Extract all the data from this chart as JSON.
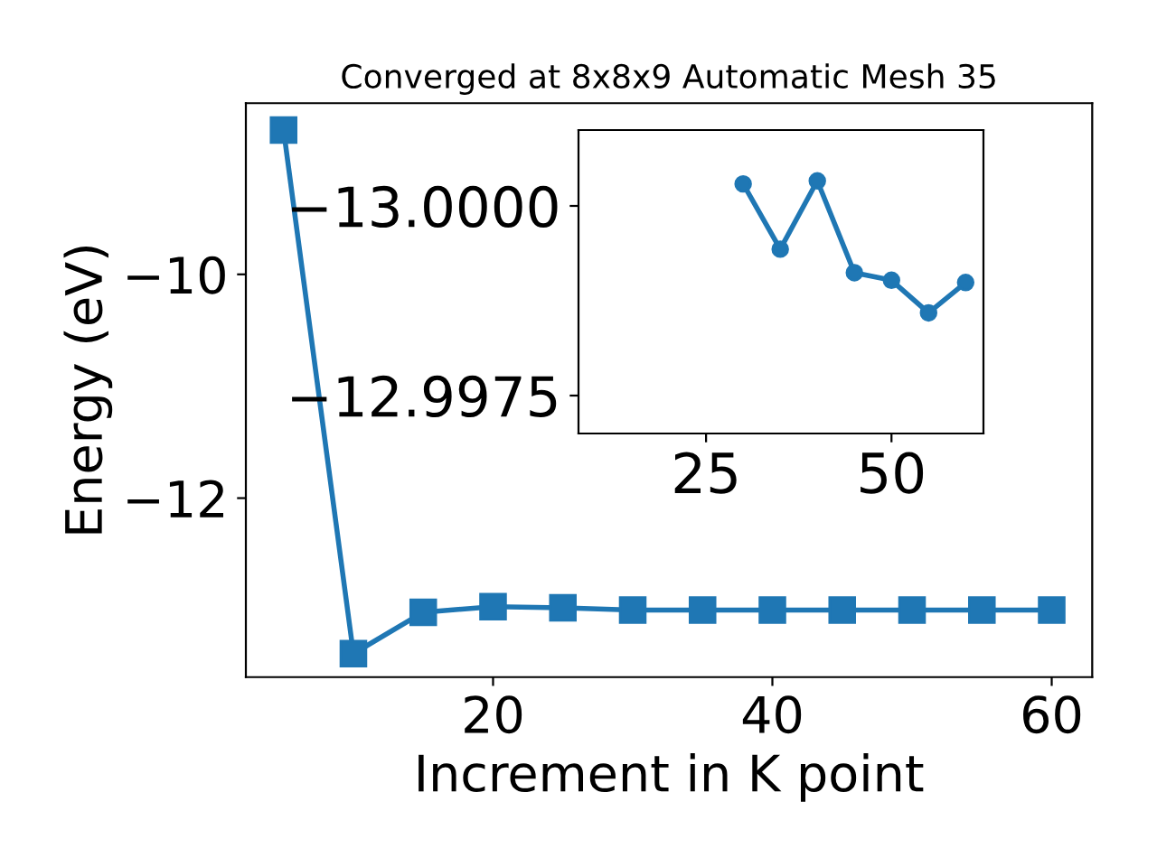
{
  "chart_data": [
    {
      "type": "line",
      "title": "Converged at 8x8x9 Automatic Mesh 35",
      "xlabel": "Increment in K point",
      "ylabel": "Energy (eV)",
      "x": [
        5,
        10,
        15,
        20,
        25,
        30,
        35,
        40,
        45,
        50,
        55,
        60
      ],
      "series": [
        {
          "color": "#1f77b4",
          "values": [
            -8.71,
            -13.39,
            -13.02,
            -12.97,
            -12.98,
            -13.0,
            -13.0,
            -13.0,
            -13.0,
            -13.0,
            -13.0,
            -13.0
          ]
        }
      ],
      "xlim": [
        2.3,
        62.9
      ],
      "ylim": [
        -13.6,
        -8.47
      ],
      "xticks": [
        20,
        40,
        60
      ],
      "yticks": [
        {
          "value": -12,
          "label": "−12"
        },
        {
          "value": -10,
          "label": "−10"
        }
      ],
      "marker": "square",
      "grid": false,
      "legend": false
    },
    {
      "type": "line",
      "x": [
        30,
        35,
        40,
        45,
        50,
        55,
        60
      ],
      "series": [
        {
          "color": "#1f77b4",
          "values": [
            -13.00029,
            -12.99943,
            -13.00033,
            -12.99912,
            -12.99902,
            -12.99859,
            -12.99899
          ]
        }
      ],
      "xlim": [
        7.8,
        62.4
      ],
      "ylim": [
        -12.997,
        -13.001
      ],
      "xticks": [
        25,
        50
      ],
      "yticks": [
        {
          "value": -13.0,
          "label": "−13.0000"
        },
        {
          "value": -12.9975,
          "label": "−12.9975"
        }
      ],
      "marker": "circle",
      "grid": false,
      "legend": false
    }
  ]
}
